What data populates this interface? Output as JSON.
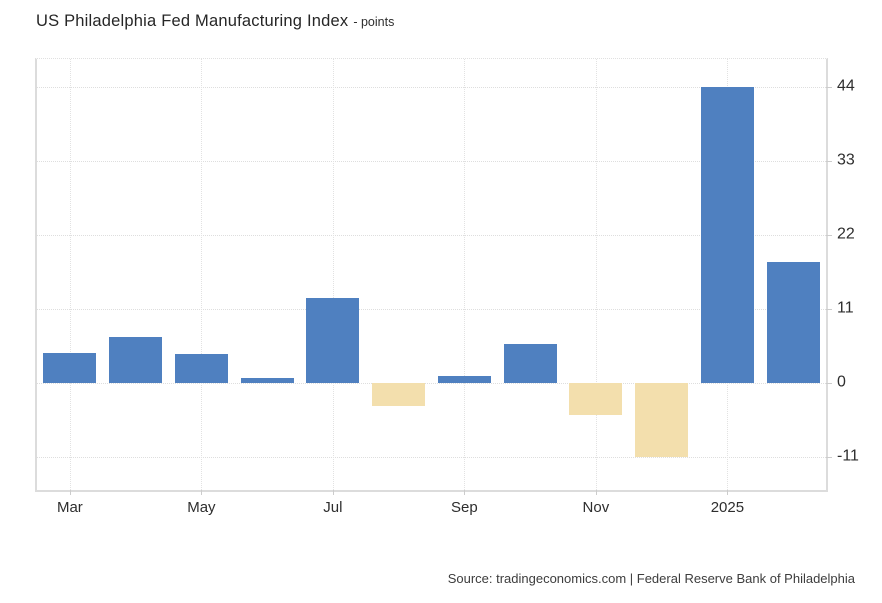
{
  "header": {
    "title": "US Philadelphia Fed Manufacturing Index",
    "subtitle": "- points"
  },
  "source": {
    "text": "Source: tradingeconomics.com | Federal Reserve Bank of Philadelphia"
  },
  "chart_data": {
    "type": "bar",
    "title": "US Philadelphia Fed Manufacturing Index",
    "unit": "points",
    "categories": [
      "Mar 2024",
      "Apr 2024",
      "May 2024",
      "Jun 2024",
      "Jul 2024",
      "Aug 2024",
      "Sep 2024",
      "Oct 2024",
      "Nov 2024",
      "Dec 2024",
      "Jan 2025",
      "Feb 2025"
    ],
    "values": [
      4.5,
      6.8,
      4.3,
      0.7,
      12.6,
      -3.4,
      1.0,
      5.8,
      -4.8,
      -11.0,
      44.0,
      17.9
    ],
    "x_tick_labels": [
      {
        "index": 0,
        "label": "Mar"
      },
      {
        "index": 2,
        "label": "May"
      },
      {
        "index": 4,
        "label": "Jul"
      },
      {
        "index": 6,
        "label": "Sep"
      },
      {
        "index": 8,
        "label": "Nov"
      },
      {
        "index": 10,
        "label": "2025"
      }
    ],
    "y_ticks": [
      44,
      33,
      22,
      11,
      0,
      -11
    ],
    "ylim": [
      -15.9,
      48.1
    ],
    "positive_color": "#4f80c0",
    "negative_color": "#f3dfad",
    "grid": true,
    "legend_position": "none",
    "y_axis_side": "right"
  }
}
